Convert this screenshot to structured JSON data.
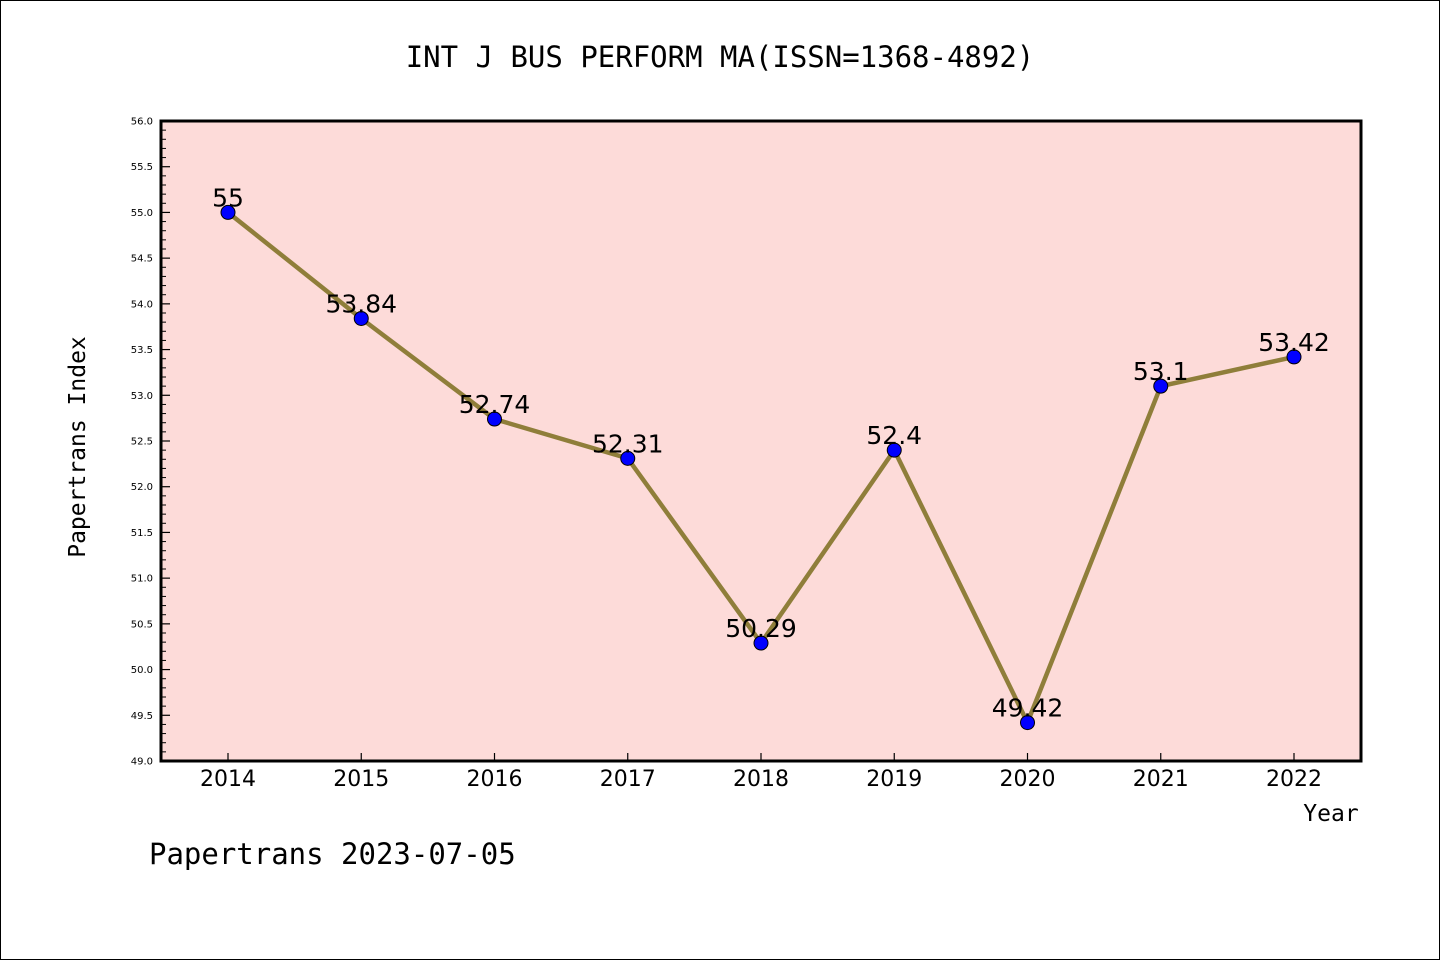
{
  "chart_data": {
    "type": "line",
    "title": "INT J BUS PERFORM MA(ISSN=1368-4892)",
    "xlabel": "Year",
    "ylabel": "Papertrans Index",
    "categories": [
      "2014",
      "2015",
      "2016",
      "2017",
      "2018",
      "2019",
      "2020",
      "2021",
      "2022"
    ],
    "series": [
      {
        "values": [
          55,
          53.84,
          52.74,
          52.31,
          50.29,
          52.4,
          49.42,
          53.1,
          53.42
        ],
        "labels": [
          "55",
          "53.84",
          "52.74",
          "52.31",
          "50.29",
          "52.4",
          "49.42",
          "53.1",
          "53.42"
        ]
      }
    ],
    "ylim": [
      49.0,
      56.0
    ],
    "yticks": [
      "49.0",
      "49.5",
      "50.0",
      "50.5",
      "51.0",
      "51.5",
      "52.0",
      "52.5",
      "53.0",
      "53.5",
      "54.0",
      "54.5",
      "55.0",
      "55.5",
      "56.0"
    ],
    "grid": false,
    "colors": {
      "plot_background": "#fddbd9",
      "line": "#8f7e3a",
      "marker": "#0000ff",
      "frame": "#000000"
    }
  },
  "footer": {
    "text": "Papertrans 2023-07-05"
  }
}
